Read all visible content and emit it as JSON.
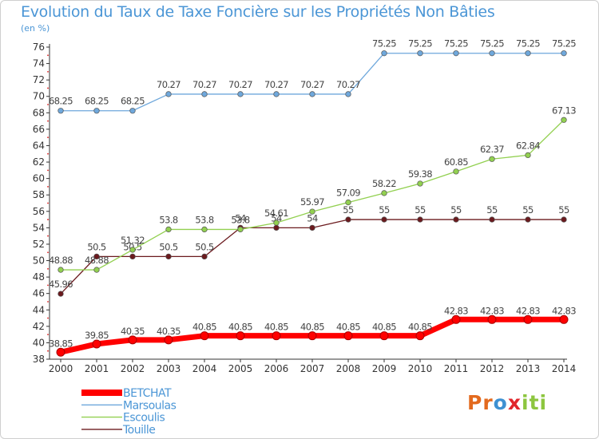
{
  "header": {
    "title": "Evolution du Taux de Taxe Foncière sur les Propriétés Non Bâties",
    "unit": "(en %)"
  },
  "logo": {
    "text": "Proxiti",
    "letters": [
      "P",
      "r",
      "o",
      "x",
      "i",
      "t",
      "i"
    ],
    "colors": [
      "#e36a1e",
      "#e36a1e",
      "#3e91d2",
      "#e1262b",
      "#8dc63f",
      "#8dc63f",
      "#8dc63f"
    ]
  },
  "chart_data": {
    "type": "line",
    "title": "Evolution du Taux de Taxe Foncière sur les Propriétés Non Bâties",
    "ylabel": "(en %)",
    "xlabel": "",
    "ylim": [
      38,
      76
    ],
    "ytick_step": 2,
    "grid": false,
    "legend": "bottom-left",
    "x": [
      "2000",
      "2001",
      "2002",
      "2003",
      "2004",
      "2005",
      "2006",
      "2007",
      "2008",
      "2009",
      "2010",
      "2011",
      "2012",
      "2013",
      "2014"
    ],
    "series": [
      {
        "name": "Touille",
        "color": "#6b1a1e",
        "width": 1.3,
        "values": [
          45.96,
          50.5,
          50.5,
          50.5,
          50.5,
          54,
          54,
          54,
          55,
          55,
          55,
          55,
          55,
          55,
          55
        ],
        "labels": [
          "45.96",
          "50.5",
          "50.5",
          "50.5",
          "50.5",
          "54",
          "54",
          "54",
          "55",
          "55",
          "55",
          "55",
          "55",
          "55",
          "55"
        ]
      },
      {
        "name": "Escoulis",
        "color": "#92d050",
        "width": 1.3,
        "values": [
          48.88,
          48.88,
          51.32,
          53.8,
          53.8,
          53.8,
          54.61,
          55.97,
          57.09,
          58.22,
          59.38,
          60.85,
          62.37,
          62.84,
          67.13
        ],
        "labels": [
          "48.88",
          "48.88",
          "51.32",
          "53.8",
          "53.8",
          "53.8",
          "54.61",
          "55.97",
          "57.09",
          "58.22",
          "59.38",
          "60.85",
          "62.37",
          "62.84",
          "67.13"
        ]
      },
      {
        "name": "Marsoulas",
        "color": "#6fa8dc",
        "width": 1.3,
        "values": [
          68.25,
          68.25,
          68.25,
          70.27,
          70.27,
          70.27,
          70.27,
          70.27,
          70.27,
          75.25,
          75.25,
          75.25,
          75.25,
          75.25,
          75.25
        ],
        "labels": [
          "68.25",
          "68.25",
          "68.25",
          "70.27",
          "70.27",
          "70.27",
          "70.27",
          "70.27",
          "70.27",
          "75.25",
          "75.25",
          "75.25",
          "75.25",
          "75.25",
          "75.25"
        ]
      },
      {
        "name": "BETCHAT",
        "color": "#ff0000",
        "width": 7,
        "values": [
          38.85,
          39.85,
          40.35,
          40.35,
          40.85,
          40.85,
          40.85,
          40.85,
          40.85,
          40.85,
          40.85,
          42.83,
          42.83,
          42.83,
          42.83
        ],
        "labels": [
          "38.85",
          "39.85",
          "40.35",
          "40.35",
          "40.85",
          "40.85",
          "40.85",
          "40.85",
          "40.85",
          "40.85",
          "40.85",
          "42.83",
          "42.83",
          "42.83",
          "42.83"
        ]
      }
    ],
    "legend_order": [
      "BETCHAT",
      "Marsoulas",
      "Escoulis",
      "Touille"
    ]
  }
}
